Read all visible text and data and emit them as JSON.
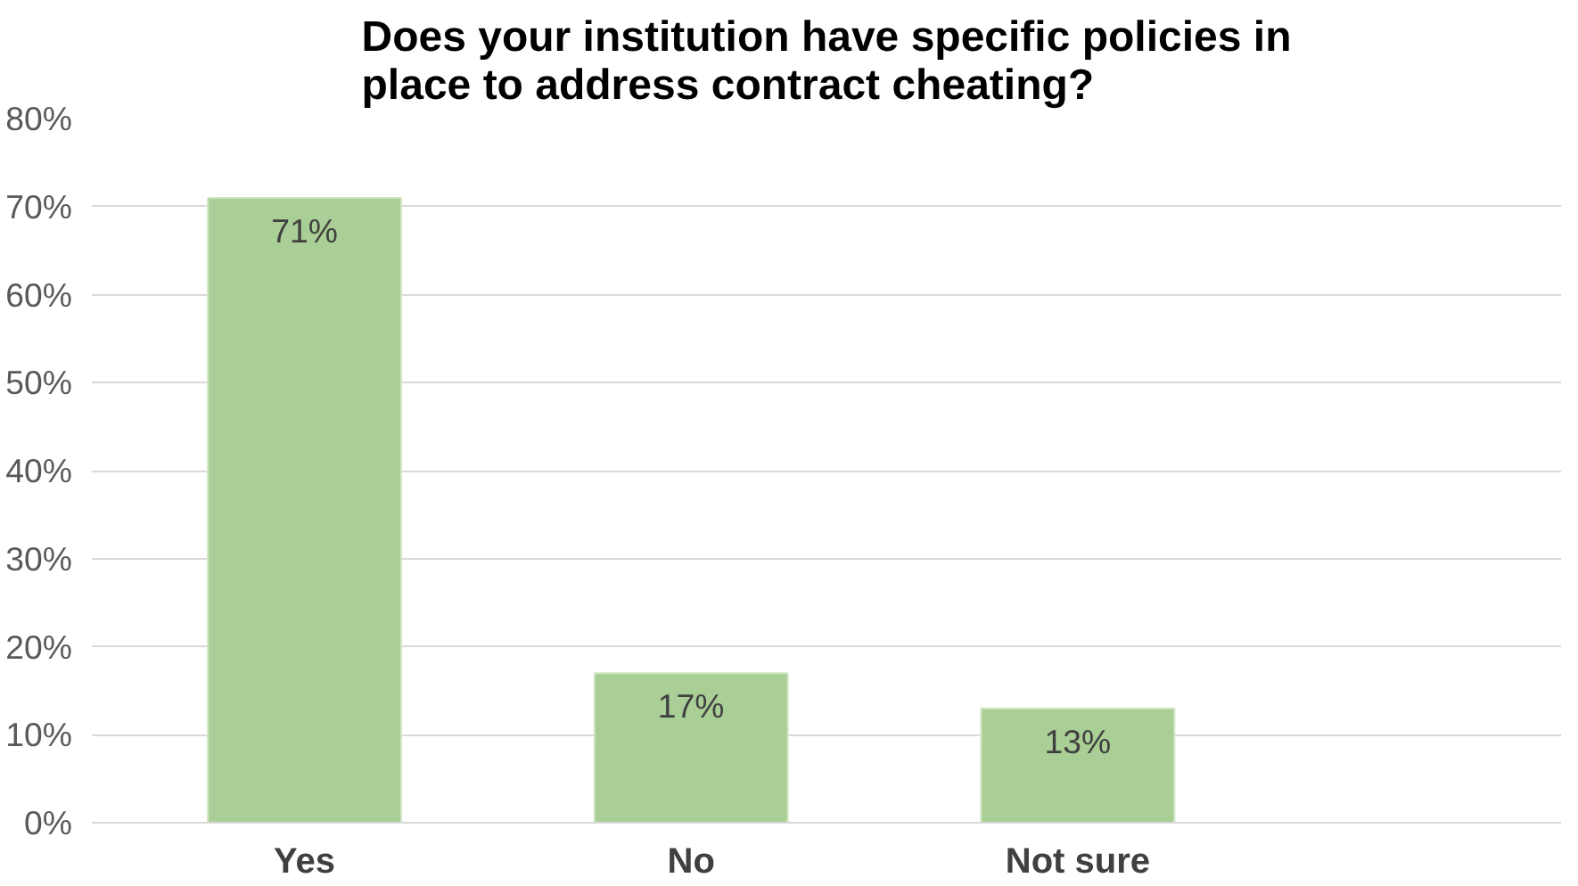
{
  "chart_data": {
    "type": "bar",
    "title": "Does your institution have specific policies in\nplace to address contract cheating?",
    "categories": [
      "Yes",
      "No",
      "Not sure"
    ],
    "values": [
      71,
      17,
      13
    ],
    "value_labels": [
      "71%",
      "17%",
      "13%"
    ],
    "color": "#a9cf96",
    "ylim": [
      0,
      80
    ],
    "yticks": [
      {
        "value": 0,
        "label": "0%"
      },
      {
        "value": 10,
        "label": "10%"
      },
      {
        "value": 20,
        "label": "20%"
      },
      {
        "value": 30,
        "label": "30%"
      },
      {
        "value": 40,
        "label": "40%"
      },
      {
        "value": 50,
        "label": "50%"
      },
      {
        "value": 60,
        "label": "60%"
      },
      {
        "value": 70,
        "label": "70%"
      },
      {
        "value": 80,
        "label": "80%"
      }
    ],
    "grid": "y"
  }
}
